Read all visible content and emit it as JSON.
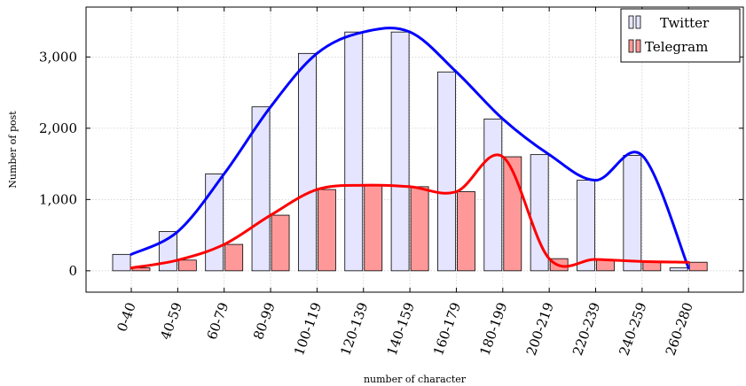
{
  "chart_data": {
    "type": "bar",
    "categories": [
      "0-40",
      "40-59",
      "60-79",
      "80-99",
      "100-119",
      "120-139",
      "140-159",
      "160-179",
      "180-199",
      "200-219",
      "220-239",
      "240-259",
      "260-280"
    ],
    "series": [
      {
        "name": "Twitter",
        "values": [
          230,
          550,
          1360,
          2300,
          3050,
          3350,
          3350,
          2790,
          2130,
          1630,
          1270,
          1620,
          40
        ],
        "bar_fill": "#e5e5ff",
        "line_color": "#0000ff"
      },
      {
        "name": "Telegram",
        "values": [
          40,
          150,
          370,
          780,
          1140,
          1200,
          1180,
          1110,
          1600,
          170,
          160,
          130,
          120
        ],
        "bar_fill": "#ff9999",
        "line_color": "#ff0000"
      }
    ],
    "xlabel": "number of character",
    "ylabel": "Number of post",
    "ylim": [
      -300,
      3700
    ],
    "yticks": [
      0,
      1000,
      2000,
      3000
    ],
    "ytick_labels": [
      "0",
      "1,000",
      "2,000",
      "3,000"
    ],
    "grid": true,
    "legend_position": "top-right"
  }
}
